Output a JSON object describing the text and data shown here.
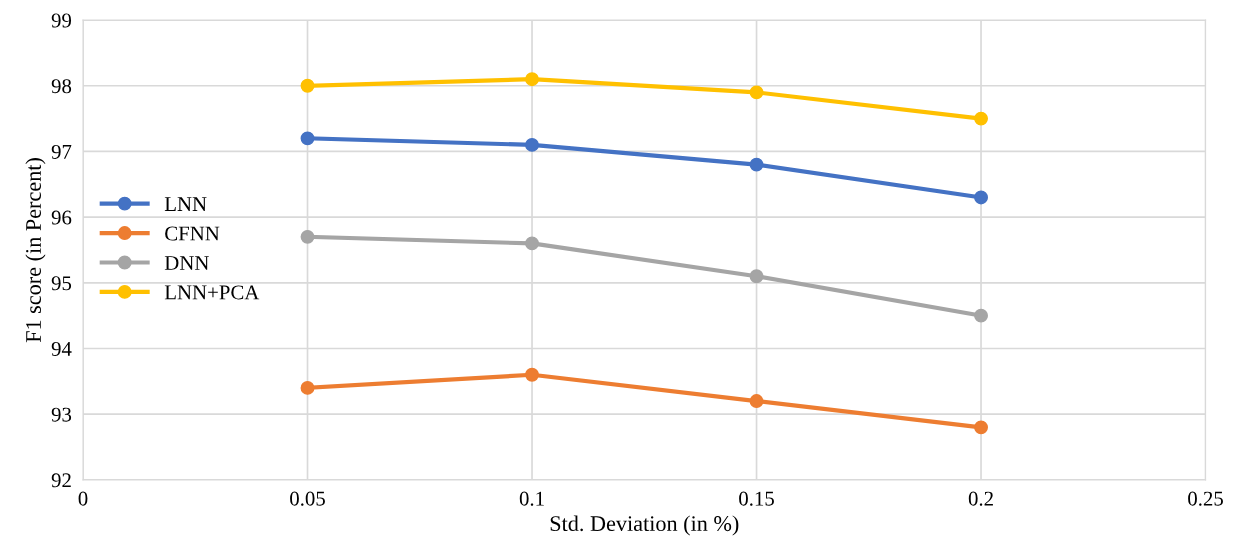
{
  "chart_data": {
    "type": "line",
    "xlabel": "Std. Deviation (in %)",
    "ylabel": "F1 score (in Percent)",
    "x": [
      0.05,
      0.1,
      0.15,
      0.2
    ],
    "series": [
      {
        "name": "LNN",
        "color": "#4472c4",
        "values": [
          97.2,
          97.1,
          96.8,
          96.3
        ]
      },
      {
        "name": "CFNN",
        "color": "#ed7d31",
        "values": [
          93.4,
          93.6,
          93.2,
          92.8
        ]
      },
      {
        "name": "DNN",
        "color": "#a5a5a5",
        "values": [
          95.7,
          95.6,
          95.1,
          94.5
        ]
      },
      {
        "name": "LNN+PCA",
        "color": "#ffc000",
        "values": [
          98.0,
          98.1,
          97.9,
          97.5
        ]
      }
    ],
    "xlim": [
      0,
      0.25
    ],
    "xticks": [
      0,
      0.05,
      0.1,
      0.15,
      0.2,
      0.25
    ],
    "ylim": [
      92,
      99
    ],
    "yticks": [
      92,
      93,
      94,
      95,
      96,
      97,
      98,
      99
    ],
    "grid": true,
    "legend": "center left",
    "marker": "circle",
    "line_style": "solid"
  }
}
